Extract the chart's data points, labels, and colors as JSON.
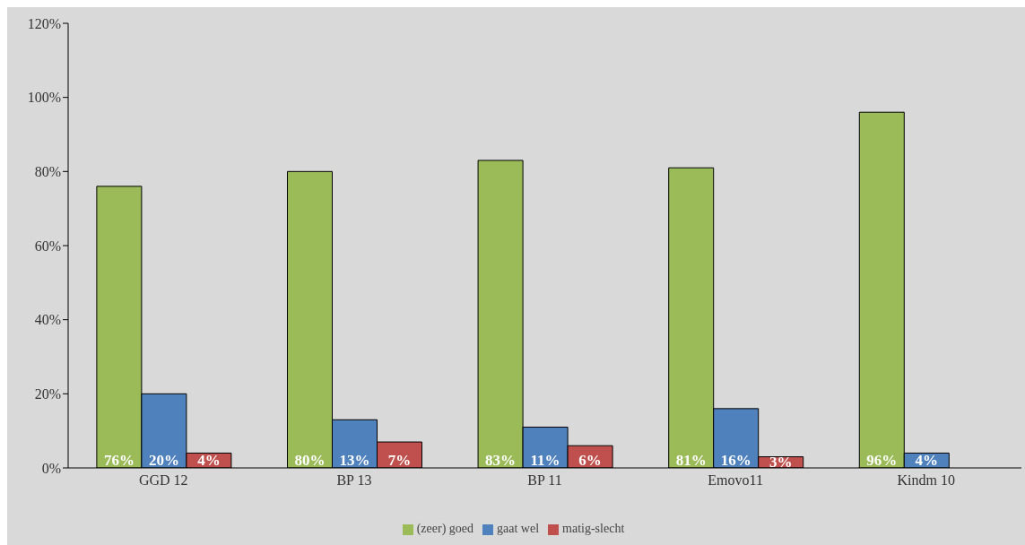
{
  "chart_data": {
    "type": "bar",
    "categories": [
      "GGD 12",
      "BP 13",
      "BP 11",
      "Emovo11",
      "Kindm 10"
    ],
    "series": [
      {
        "name": "(zeer) goed",
        "color": "#9bbb59",
        "values": [
          76,
          80,
          83,
          81,
          96
        ],
        "value_labels": [
          "76%",
          "80%",
          "83%",
          "81%",
          "96%"
        ]
      },
      {
        "name": "gaat wel",
        "color": "#4f81bd",
        "values": [
          20,
          13,
          11,
          16,
          4
        ],
        "value_labels": [
          "20%",
          "13%",
          "11%",
          "16%",
          "4%"
        ]
      },
      {
        "name": "matig-slecht",
        "color": "#c0504d",
        "values": [
          4,
          7,
          6,
          3,
          0
        ],
        "value_labels": [
          "4%",
          "7%",
          "6%",
          "3%",
          null
        ]
      }
    ],
    "ylim": [
      0,
      120
    ],
    "yticks": [
      {
        "value": 0,
        "label": "0%"
      },
      {
        "value": 20,
        "label": "20%"
      },
      {
        "value": 40,
        "label": "40%"
      },
      {
        "value": 60,
        "label": "60%"
      },
      {
        "value": 80,
        "label": "80%"
      },
      {
        "value": 100,
        "label": "100%"
      },
      {
        "value": 120,
        "label": "120%"
      }
    ],
    "grid": false,
    "legend": "bottom"
  }
}
